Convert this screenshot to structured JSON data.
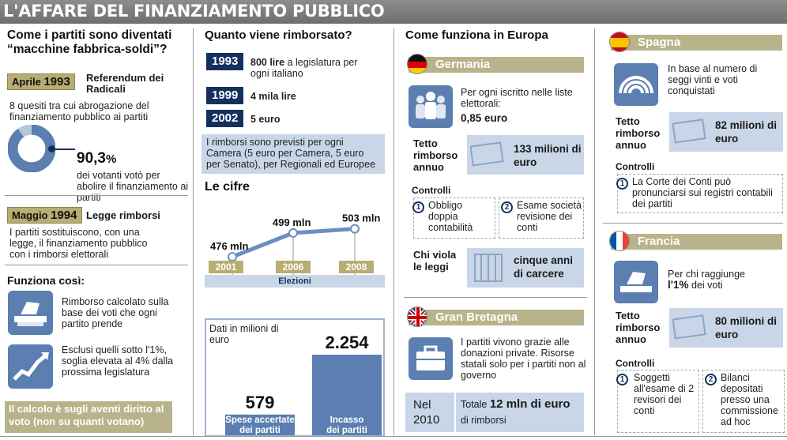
{
  "title": "L'AFFARE DEL FINANZIAMENTO PUBBLICO",
  "col1": {
    "heading": "Come i partiti sono diventati “macchine fabbrica-soldi”?",
    "ref_date_month": "Aprile",
    "ref_date_year": "1993",
    "ref_title": "Referendum dei Radicali",
    "ref_text": "8 quesiti tra cui abrogazione del finanziamento pubblico ai partiti",
    "pct_value": "90,3",
    "pct_sign": "%",
    "pct_fraction": 0.903,
    "pct_text": "dei votanti votò per abolire il finanziamento ai partiti",
    "law_date_month": "Maggio",
    "law_date_year": "1994",
    "law_title": "Legge rimborsi",
    "law_text": "I partiti sostituiscono, con una legge, il finanziamento pubblico con i rimborsi elettorali",
    "how_heading": "Funziona così:",
    "how_item1": "Rimborso calcolato sulla base dei voti che ogni partito prende",
    "how_item2": "Esclusi quelli sotto l'1%, soglia elevata al 4% dalla prossima legislatura",
    "footer": "Il calcolo è sugli aventi diritto al voto (non su quanti votano)"
  },
  "col2": {
    "heading": "Quanto viene rimborsato?",
    "rows": [
      {
        "year": "1993",
        "amount": "800 lire",
        "rest": "a legislatura per ogni italiano"
      },
      {
        "year": "1999",
        "amount": "4 mila lire",
        "rest": ""
      },
      {
        "year": "2002",
        "amount": "5 euro",
        "rest": ""
      }
    ],
    "note": "I rimborsi sono previsti per ogni Camera (5 euro per Camera, 5 euro per Senato), per Regionali ed Europee",
    "cifre_heading": "Le cifre",
    "line_labels": [
      "476 mln",
      "499 mln",
      "503 mln"
    ],
    "line_years": [
      "2001",
      "2006",
      "2008"
    ],
    "line_axis_label": "Elezioni",
    "bars_unit": "Dati in milioni di euro",
    "bar1_value": "579",
    "bar1_label": "Spese accertate dei partiti",
    "bar2_value": "2.254",
    "bar2_label": "Incasso dei partiti"
  },
  "chart_data": [
    {
      "type": "line",
      "categories": [
        "2001",
        "2006",
        "2008"
      ],
      "values": [
        476,
        499,
        503
      ],
      "labels": [
        "476 mln",
        "499 mln",
        "503 mln"
      ],
      "xlabel": "Elezioni",
      "title": "Le cifre"
    },
    {
      "type": "bar",
      "categories": [
        "Spese accertate dei partiti",
        "Incasso dei partiti"
      ],
      "values": [
        579,
        2254
      ],
      "labels": [
        "579",
        "2.254"
      ],
      "ylabel": "Dati in milioni di euro"
    }
  ],
  "col3": {
    "heading": "Come funziona in Europa",
    "germania": {
      "name": "Germania",
      "info": "Per ogni iscritto nelle liste elettorali:",
      "info_amount": "0,85 euro",
      "tetto_label": "Tetto rimborso annuo",
      "tetto_value": "133 milioni di euro",
      "controlli": "Controlli",
      "c1_num": "1",
      "c1_text": "Obbligo doppia contabilità",
      "c2_num": "2",
      "c2_text": "Esame società revisione dei conti",
      "viola_label": "Chi viola le leggi",
      "viola_value": "cinque anni di carcere"
    },
    "gb": {
      "name": "Gran Bretagna",
      "info": "I partiti vivono grazie alle donazioni private. Risorse statali solo per i partiti non al governo",
      "year_label": "Nel 2010",
      "total_prefix": "Totale",
      "total_value": "12 mln di euro",
      "total_suffix": "di rimborsi"
    }
  },
  "col4": {
    "spagna": {
      "name": "Spagna",
      "info": "In base al numero di seggi vinti e voti conquistati",
      "tetto_label": "Tetto rimborso annuo",
      "tetto_value": "82 milioni di euro",
      "controlli": "Controlli",
      "c1_num": "1",
      "c1_text": "La Corte dei Conti può pronunciarsi sui registri contabili dei partiti"
    },
    "francia": {
      "name": "Francia",
      "info": "Per chi raggiunge",
      "info_bold": "l'1%",
      "info_rest": "dei voti",
      "tetto_label": "Tetto rimborso annuo",
      "tetto_value": "80 milioni di euro",
      "controlli": "Controlli",
      "c1_num": "1",
      "c1_text": "Soggetti all'esame di 2 revisori dei conti",
      "c2_num": "2",
      "c2_text": "Bilanci depositati presso una commissione ad hoc"
    }
  },
  "colors": {
    "navy": "#14305e",
    "olive": "#b8ad72",
    "light_blue": "#c9d6e8",
    "icon_blue": "#5a7fb0"
  }
}
